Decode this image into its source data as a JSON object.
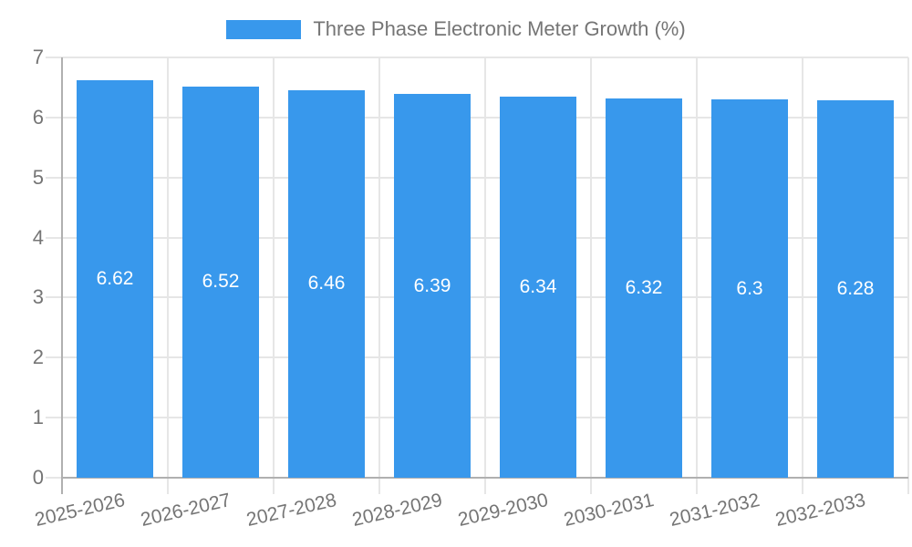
{
  "chart_data": {
    "type": "bar",
    "title": "Three Phase Electronic Meter Growth (%)",
    "categories": [
      "2025-2026",
      "2026-2027",
      "2027-2028",
      "2028-2029",
      "2029-2030",
      "2030-2031",
      "2031-2032",
      "2032-2033"
    ],
    "values": [
      6.62,
      6.52,
      6.46,
      6.39,
      6.34,
      6.32,
      6.3,
      6.28
    ],
    "value_labels": [
      "6.62",
      "6.52",
      "6.46",
      "6.39",
      "6.34",
      "6.32",
      "6.3",
      "6.28"
    ],
    "xlabel": "",
    "ylabel": "",
    "ylim": [
      0,
      7
    ],
    "yticks": [
      0,
      1,
      2,
      3,
      4,
      5,
      6,
      7
    ],
    "grid": true,
    "legend_position": "top-center",
    "colors": {
      "bar": "#3898EC",
      "grid": "#e6e6e6",
      "axis": "#b0b0b0",
      "tick_text": "#757575",
      "value_label_text": "#ffffff",
      "background": "#ffffff"
    }
  }
}
